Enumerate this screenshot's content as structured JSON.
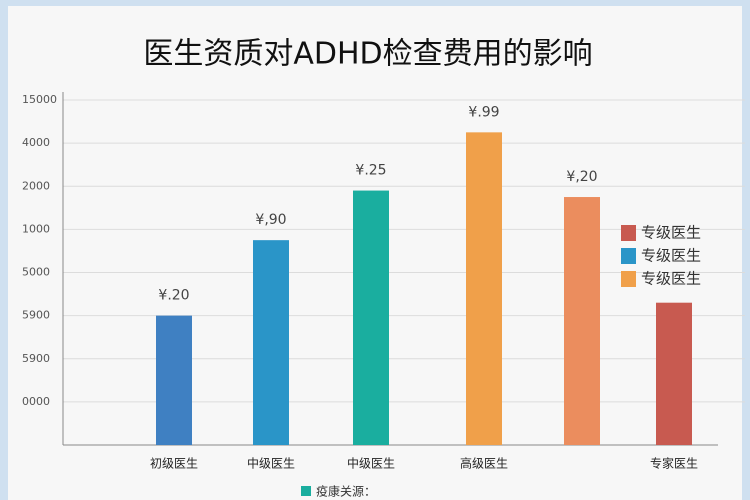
{
  "chart_data": {
    "type": "bar",
    "title": "医生资质对ADHD检查费用的影响",
    "categories": [
      "初级医生",
      "中级医生",
      "中级医生",
      "高级医生",
      null,
      "专家医生"
    ],
    "values": [
      3.0,
      4.75,
      5.9,
      7.25,
      5.75,
      3.3
    ],
    "colors": [
      "#3f80c2",
      "#2a95c8",
      "#1aae9f",
      "#f0a04a",
      "#eb8d5e",
      "#c85a50"
    ],
    "annotations": [
      "¥.20",
      "¥,90",
      "¥.25",
      "¥.99",
      "¥,20"
    ],
    "ylim": [
      0,
      8
    ],
    "yticks": [
      {
        "value": 1,
        "label": "0000"
      },
      {
        "value": 2,
        "label": "5900"
      },
      {
        "value": 3,
        "label": "5900"
      },
      {
        "value": 4,
        "label": "5000"
      },
      {
        "value": 5,
        "label": "1000"
      },
      {
        "value": 6,
        "label": "2000"
      },
      {
        "value": 7,
        "label": "4000"
      },
      {
        "value": 8,
        "label": "15000"
      }
    ],
    "grid": true,
    "legend": [
      {
        "name": "专级医生",
        "color": "#c85a50"
      },
      {
        "name": "专级医生",
        "color": "#2a95c8"
      },
      {
        "name": "专级医生",
        "color": "#f0a04a"
      }
    ],
    "legend_position": "right",
    "source": "疫康关源：",
    "source_color": "#1aae9f"
  }
}
